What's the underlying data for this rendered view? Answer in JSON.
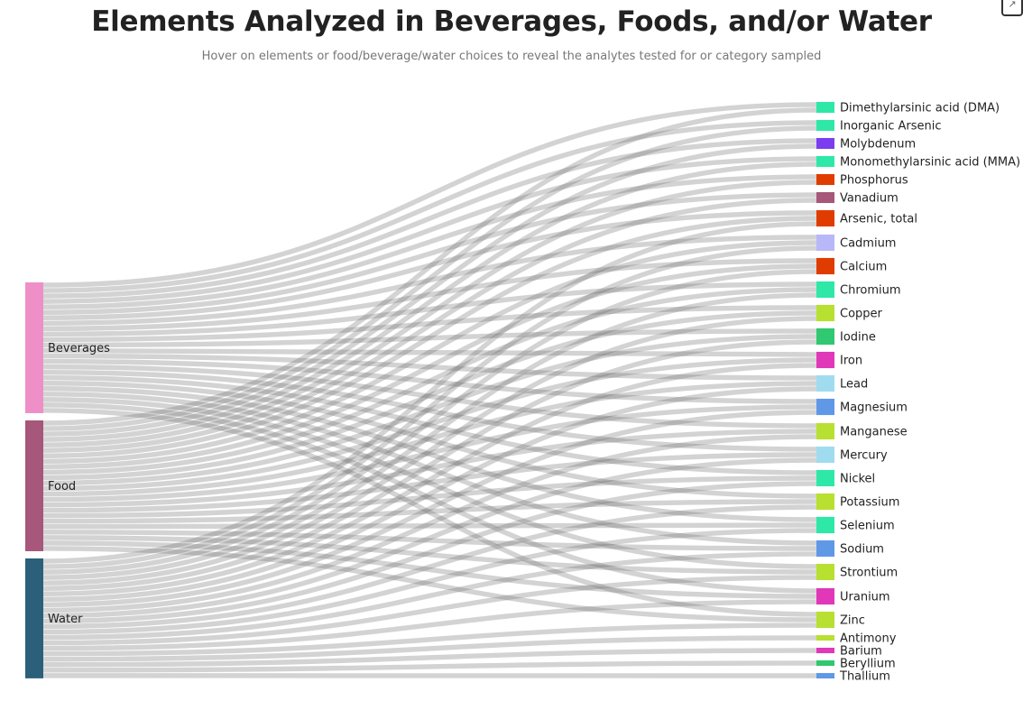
{
  "title": "Elements Analyzed in Beverages, Foods, and/or Water",
  "subtitle": "Hover on elements or food/beverage/water choices to reveal the analytes tested for or category sampled",
  "fullscreen_icon": "collapse-arrows-icon",
  "chart_data": {
    "type": "sankey",
    "link_color": "#b4b4b4",
    "sources": [
      {
        "name": "Beverages",
        "color": "#ee8fc8"
      },
      {
        "name": "Food",
        "color": "#a6577a"
      },
      {
        "name": "Water",
        "color": "#2c5f7a"
      }
    ],
    "targets": [
      {
        "name": "Dimethylarsinic acid (DMA)",
        "color": "#2ee8a8",
        "from": [
          "Beverages",
          "Food"
        ]
      },
      {
        "name": "Inorganic Arsenic",
        "color": "#2ee8a8",
        "from": [
          "Beverages",
          "Food"
        ]
      },
      {
        "name": "Molybdenum",
        "color": "#7a3ef0",
        "from": [
          "Beverages",
          "Food"
        ]
      },
      {
        "name": "Monomethylarsinic acid (MMA)",
        "color": "#2ee8a8",
        "from": [
          "Beverages",
          "Food"
        ]
      },
      {
        "name": "Phosphorus",
        "color": "#e03c00",
        "from": [
          "Beverages",
          "Food"
        ]
      },
      {
        "name": "Vanadium",
        "color": "#a6577a",
        "from": [
          "Beverages",
          "Food"
        ]
      },
      {
        "name": "Arsenic, total",
        "color": "#e03c00",
        "from": [
          "Beverages",
          "Food",
          "Water"
        ]
      },
      {
        "name": "Cadmium",
        "color": "#b8b8f8",
        "from": [
          "Beverages",
          "Food",
          "Water"
        ]
      },
      {
        "name": "Calcium",
        "color": "#e03c00",
        "from": [
          "Beverages",
          "Food",
          "Water"
        ]
      },
      {
        "name": "Chromium",
        "color": "#2ee8a8",
        "from": [
          "Beverages",
          "Food",
          "Water"
        ]
      },
      {
        "name": "Copper",
        "color": "#b8e030",
        "from": [
          "Beverages",
          "Food",
          "Water"
        ]
      },
      {
        "name": "Iodine",
        "color": "#30c870",
        "from": [
          "Beverages",
          "Food",
          "Water"
        ]
      },
      {
        "name": "Iron",
        "color": "#e038b8",
        "from": [
          "Beverages",
          "Food",
          "Water"
        ]
      },
      {
        "name": "Lead",
        "color": "#a0dcf0",
        "from": [
          "Beverages",
          "Food",
          "Water"
        ]
      },
      {
        "name": "Magnesium",
        "color": "#6098e8",
        "from": [
          "Beverages",
          "Food",
          "Water"
        ]
      },
      {
        "name": "Manganese",
        "color": "#b8e030",
        "from": [
          "Beverages",
          "Food",
          "Water"
        ]
      },
      {
        "name": "Mercury",
        "color": "#a0dcf0",
        "from": [
          "Beverages",
          "Food",
          "Water"
        ]
      },
      {
        "name": "Nickel",
        "color": "#2ee8a8",
        "from": [
          "Beverages",
          "Food",
          "Water"
        ]
      },
      {
        "name": "Potassium",
        "color": "#b8e030",
        "from": [
          "Beverages",
          "Food",
          "Water"
        ]
      },
      {
        "name": "Selenium",
        "color": "#2ee8a8",
        "from": [
          "Beverages",
          "Food",
          "Water"
        ]
      },
      {
        "name": "Sodium",
        "color": "#6098e8",
        "from": [
          "Beverages",
          "Food",
          "Water"
        ]
      },
      {
        "name": "Strontium",
        "color": "#b8e030",
        "from": [
          "Beverages",
          "Food",
          "Water"
        ]
      },
      {
        "name": "Uranium",
        "color": "#e038b8",
        "from": [
          "Beverages",
          "Food",
          "Water"
        ]
      },
      {
        "name": "Zinc",
        "color": "#b8e030",
        "from": [
          "Beverages",
          "Food",
          "Water"
        ]
      },
      {
        "name": "Antimony",
        "color": "#b8e030",
        "from": [
          "Water"
        ]
      },
      {
        "name": "Barium",
        "color": "#e038b8",
        "from": [
          "Water"
        ]
      },
      {
        "name": "Beryllium",
        "color": "#30c870",
        "from": [
          "Water"
        ]
      },
      {
        "name": "Thallium",
        "color": "#6098e8",
        "from": [
          "Water"
        ]
      }
    ]
  }
}
